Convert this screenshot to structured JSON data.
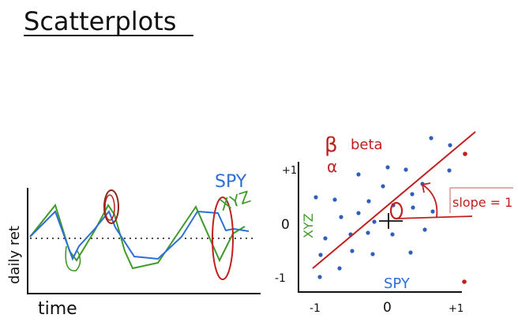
{
  "title": "Scatterplots",
  "left_chart": {
    "ylabel": "daily ret",
    "xlabel": "time",
    "legend": {
      "spy": "SPY",
      "xyz": "XYZ"
    },
    "colors": {
      "spy": "#2e6fd6",
      "xyz": "#3f9a2a",
      "axis": "#111111",
      "highlight": "#c0201e"
    }
  },
  "right_chart": {
    "label_beta_symbol": "β",
    "label_beta": "beta",
    "label_alpha": "α",
    "xlabel": "SPY",
    "ylabel": "XYZ",
    "slope_label": "slope = 1",
    "y_ticks": [
      "+1",
      "0",
      "-1"
    ],
    "x_ticks": [
      "-1",
      "0",
      "+1"
    ],
    "colors": {
      "points": "#2f5fb8",
      "fit": "#c0201e",
      "axis": "#111111"
    }
  }
}
